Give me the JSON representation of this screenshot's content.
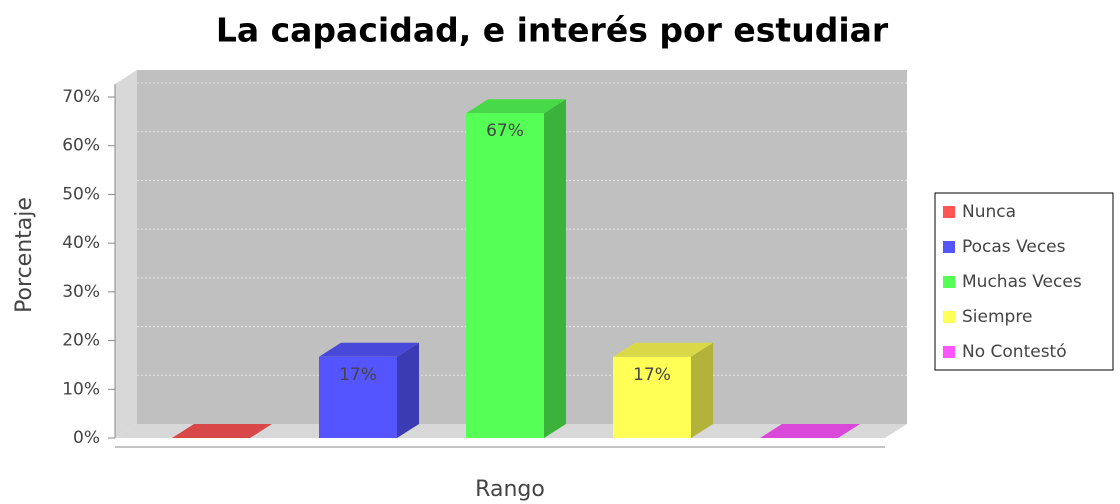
{
  "chart_data": {
    "type": "bar3d",
    "title": "La capacidad, e interés por estudiar",
    "x_label": "Rango",
    "y_label": "Porcentaje",
    "categories": [
      "Rango"
    ],
    "series": [
      {
        "name": "Nunca",
        "color": "#ff5555",
        "values": [
          0
        ],
        "value_labels": [
          null
        ]
      },
      {
        "name": "Pocas Veces",
        "color": "#5555ff",
        "values": [
          16.67
        ],
        "value_labels": [
          "17%"
        ]
      },
      {
        "name": "Muchas Veces",
        "color": "#55ff55",
        "values": [
          66.67
        ],
        "value_labels": [
          "67%"
        ]
      },
      {
        "name": "Siempre",
        "color": "#ffff55",
        "values": [
          16.67
        ],
        "value_labels": [
          "17%"
        ]
      },
      {
        "name": "No Contestó",
        "color": "#ff55ff",
        "values": [
          0
        ],
        "value_labels": [
          null
        ]
      }
    ],
    "ylim": [
      0,
      70
    ],
    "yticks": [
      {
        "value": 0,
        "label": "0%"
      },
      {
        "value": 10,
        "label": "10%"
      },
      {
        "value": 20,
        "label": "20%"
      },
      {
        "value": 30,
        "label": "30%"
      },
      {
        "value": 40,
        "label": "40%"
      },
      {
        "value": 50,
        "label": "50%"
      },
      {
        "value": 60,
        "label": "60%"
      },
      {
        "value": 70,
        "label": "70%"
      }
    ],
    "grid": true,
    "legend": "right"
  }
}
